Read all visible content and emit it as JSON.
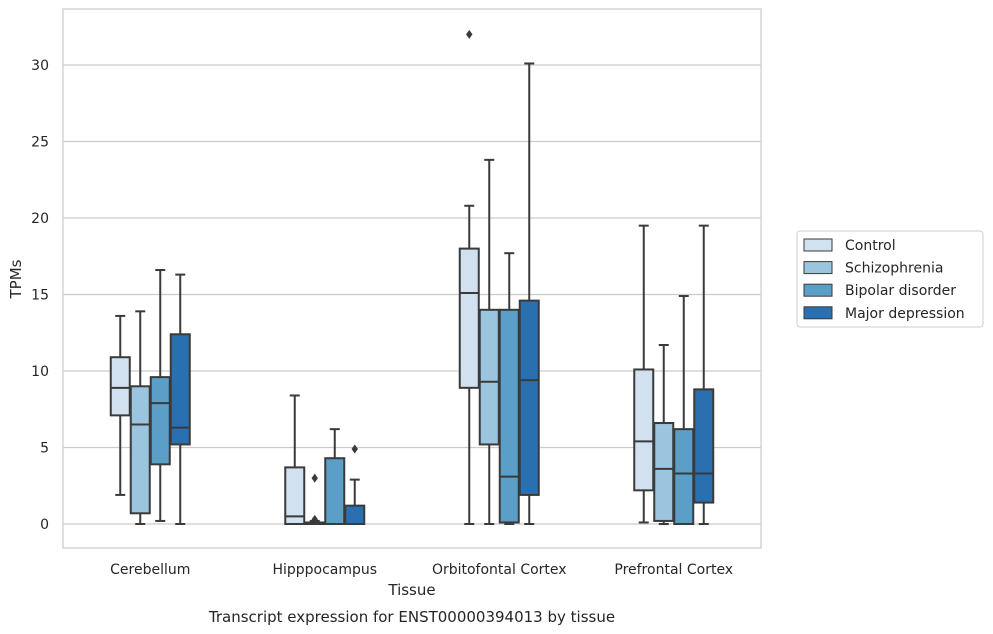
{
  "chart_data": {
    "type": "box",
    "caption": "Transcript expression for ENST00000394013 by tissue",
    "xlabel": "Tissue",
    "ylabel": "TPMs",
    "ylim": [
      -1.5,
      33.5
    ],
    "yticks": [
      0,
      5,
      10,
      15,
      20,
      25,
      30
    ],
    "grid": true,
    "legend_position": "right",
    "categories": [
      "Cerebellum",
      "Hipppocampus",
      "Orbitofontal Cortex",
      "Prefrontal Cortex"
    ],
    "series": [
      {
        "name": "Control",
        "color": "#d1e1ef",
        "boxes": [
          {
            "whislo": 1.9,
            "q1": 7.1,
            "med": 8.9,
            "q3": 10.9,
            "whishi": 13.6,
            "fliers": []
          },
          {
            "whislo": 0.0,
            "q1": 0.0,
            "med": 0.5,
            "q3": 3.7,
            "whishi": 8.4,
            "fliers": []
          },
          {
            "whislo": 0.0,
            "q1": 8.9,
            "med": 15.1,
            "q3": 18.0,
            "whishi": 20.8,
            "fliers": [
              32.0
            ]
          },
          {
            "whislo": 0.1,
            "q1": 2.2,
            "med": 5.4,
            "q3": 10.1,
            "whishi": 19.5,
            "fliers": []
          }
        ]
      },
      {
        "name": "Schizophrenia",
        "color": "#9bc5df",
        "boxes": [
          {
            "whislo": 0.0,
            "q1": 0.7,
            "med": 6.5,
            "q3": 9.0,
            "whishi": 13.9,
            "fliers": []
          },
          {
            "whislo": 0.0,
            "q1": 0.0,
            "med": 0.05,
            "q3": 0.1,
            "whishi": 0.2,
            "fliers": [
              0.3,
              3.0
            ]
          },
          {
            "whislo": 0.0,
            "q1": 5.2,
            "med": 9.3,
            "q3": 14.0,
            "whishi": 23.8,
            "fliers": []
          },
          {
            "whislo": 0.0,
            "q1": 0.2,
            "med": 3.6,
            "q3": 6.6,
            "whishi": 11.7,
            "fliers": []
          }
        ]
      },
      {
        "name": "Bipolar disorder",
        "color": "#5b9ec8",
        "boxes": [
          {
            "whislo": 0.2,
            "q1": 3.9,
            "med": 7.9,
            "q3": 9.6,
            "whishi": 16.6,
            "fliers": []
          },
          {
            "whislo": 0.0,
            "q1": 0.0,
            "med": 0.0,
            "q3": 4.3,
            "whishi": 6.2,
            "fliers": []
          },
          {
            "whislo": 0.0,
            "q1": 0.1,
            "med": 3.1,
            "q3": 14.0,
            "whishi": 17.7,
            "fliers": []
          },
          {
            "whislo": 0.0,
            "q1": 0.0,
            "med": 3.3,
            "q3": 6.2,
            "whishi": 14.9,
            "fliers": []
          }
        ]
      },
      {
        "name": "Major depression",
        "color": "#2a6fb0",
        "boxes": [
          {
            "whislo": 0.0,
            "q1": 5.2,
            "med": 6.3,
            "q3": 12.4,
            "whishi": 16.3,
            "fliers": []
          },
          {
            "whislo": 0.0,
            "q1": 0.0,
            "med": 0.0,
            "q3": 1.2,
            "whishi": 2.9,
            "fliers": [
              4.9
            ]
          },
          {
            "whislo": 0.0,
            "q1": 1.9,
            "med": 9.4,
            "q3": 14.6,
            "whishi": 30.1,
            "fliers": []
          },
          {
            "whislo": 0.0,
            "q1": 1.4,
            "med": 3.3,
            "q3": 8.8,
            "whishi": 19.5,
            "fliers": []
          }
        ]
      }
    ]
  }
}
